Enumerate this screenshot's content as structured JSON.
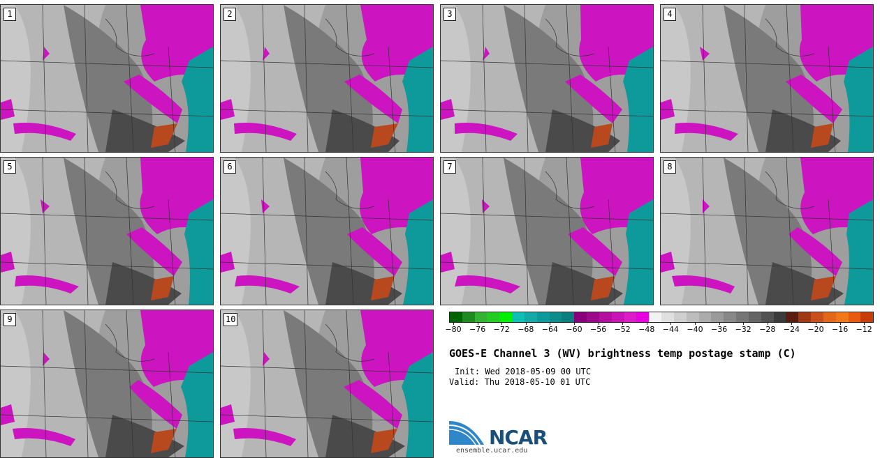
{
  "panels": [
    {
      "label": "1"
    },
    {
      "label": "2"
    },
    {
      "label": "3"
    },
    {
      "label": "4"
    },
    {
      "label": "5"
    },
    {
      "label": "6"
    },
    {
      "label": "7"
    },
    {
      "label": "8"
    },
    {
      "label": "9"
    },
    {
      "label": "10"
    }
  ],
  "colorbar": {
    "ticks": [
      "-80",
      "-76",
      "-72",
      "-68",
      "-64",
      "-60",
      "-56",
      "-52",
      "-48",
      "-44",
      "-40",
      "-36",
      "-32",
      "-28",
      "-24",
      "-20",
      "-16",
      "-12"
    ],
    "colors": [
      "#006400",
      "#1f8a1f",
      "#33b233",
      "#22cc22",
      "#00ee00",
      "#0fbfb5",
      "#14a8a8",
      "#0e9a9a",
      "#0d8c8c",
      "#0a7f7f",
      "#8a007a",
      "#9c0a8c",
      "#b410a0",
      "#c814b4",
      "#dd1cc9",
      "#e800e0",
      "#f2f2f2",
      "#e0e0e0",
      "#cfcfcf",
      "#bdbdbd",
      "#ababab",
      "#9a9a9a",
      "#888888",
      "#767676",
      "#646464",
      "#525252",
      "#3c3c3c",
      "#5a1e10",
      "#a03a14",
      "#c8501a",
      "#e06818",
      "#f07818",
      "#e85a10",
      "#c83c0a"
    ]
  },
  "title": "GOES-E Channel 3 (WV) brightness temp postage stamp (C)",
  "init": "Init: Wed 2018-05-09 00 UTC",
  "valid": "Valid: Thu 2018-05-10 01 UTC",
  "logo": {
    "name": "NCAR",
    "url": "ensemble.ucar.edu"
  }
}
